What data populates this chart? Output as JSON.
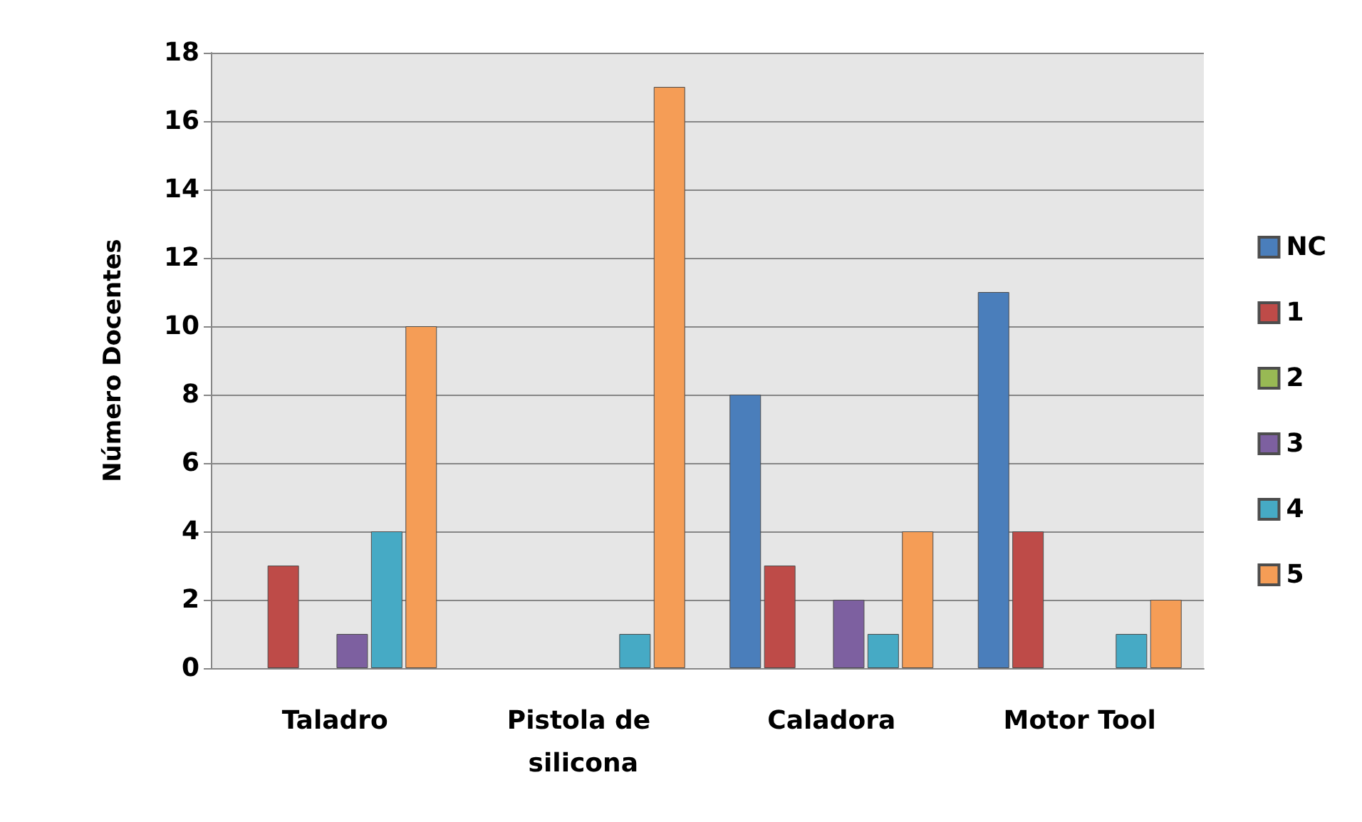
{
  "chart_data": {
    "type": "bar",
    "ylabel": "Número Docentes",
    "categories": [
      "Taladro",
      "Pistola de silicona",
      "Caladora",
      "Motor Tool"
    ],
    "series": [
      {
        "name": "NC",
        "color": "#4a7ebb",
        "values": [
          0,
          0,
          8,
          11
        ]
      },
      {
        "name": "1",
        "color": "#be4b48",
        "values": [
          3,
          0,
          3,
          4
        ]
      },
      {
        "name": "2",
        "color": "#98b954",
        "values": [
          0,
          0,
          0,
          0
        ]
      },
      {
        "name": "3",
        "color": "#7d60a0",
        "values": [
          1,
          0,
          2,
          0
        ]
      },
      {
        "name": "4",
        "color": "#46aac5",
        "values": [
          4,
          1,
          1,
          1
        ]
      },
      {
        "name": "5",
        "color": "#f59d56",
        "values": [
          10,
          17,
          4,
          2
        ]
      }
    ],
    "ylim": [
      0,
      18
    ],
    "yticks": [
      0,
      2,
      4,
      6,
      8,
      10,
      12,
      14,
      16,
      18
    ],
    "grid": "y",
    "legend": "right"
  }
}
